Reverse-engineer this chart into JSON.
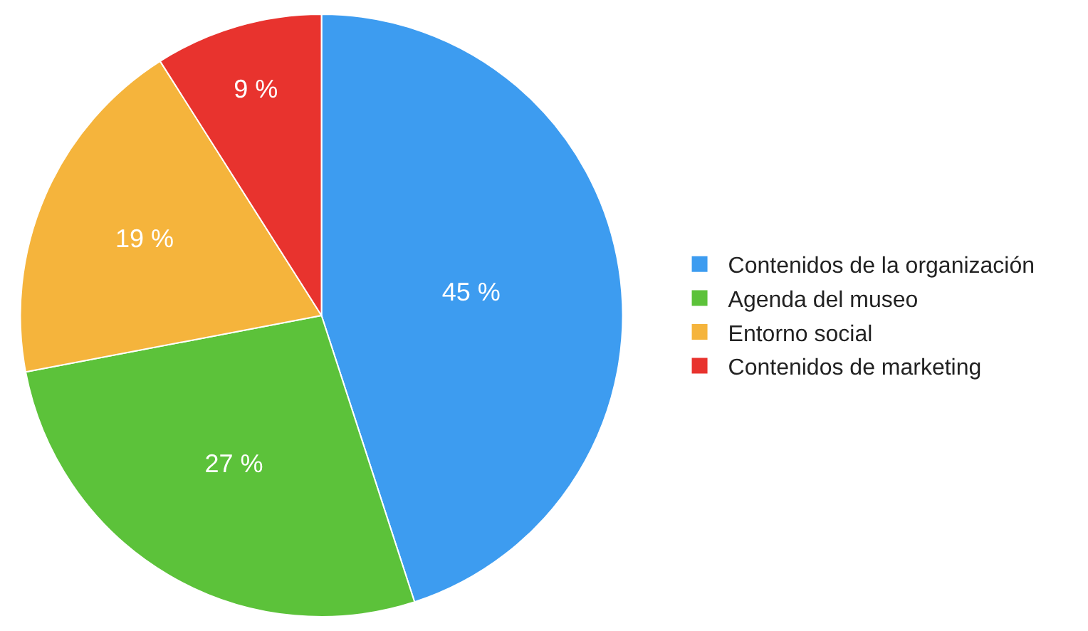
{
  "chart_data": {
    "type": "pie",
    "categories": [
      "Contenidos de la organización",
      "Agenda del museo",
      "Entorno social",
      "Contenidos de marketing"
    ],
    "values": [
      45,
      27,
      19,
      9
    ],
    "value_labels": [
      "45 %",
      "27 %",
      "19 %",
      "9 %"
    ],
    "colors": [
      "#3d9cf0",
      "#5cc23a",
      "#f5b43c",
      "#e8332e"
    ],
    "legend": "right"
  }
}
